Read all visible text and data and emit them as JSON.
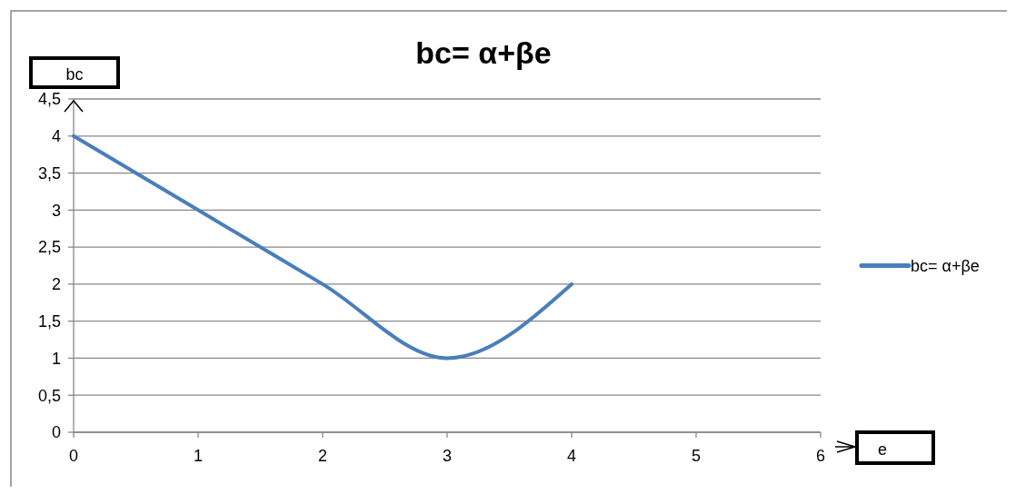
{
  "chart_data": {
    "type": "line",
    "title": "bc= α+βe",
    "xlabel": "e",
    "ylabel": "bc",
    "x": [
      0,
      1,
      2,
      3,
      4
    ],
    "series": [
      {
        "name": "bc= α+βe",
        "color": "#4a7ebb",
        "values": [
          4,
          3,
          2,
          1,
          2
        ]
      }
    ],
    "xlim": [
      0,
      6
    ],
    "xticks": [
      0,
      1,
      2,
      3,
      4,
      5,
      6
    ],
    "ylim": [
      0,
      4.5
    ],
    "yticks": [
      0,
      {
        "value": 0.5,
        "label": "0,5"
      },
      1,
      {
        "value": 1.5,
        "label": "1,5"
      },
      2,
      {
        "value": 2.5,
        "label": "2,5"
      },
      3,
      {
        "value": 3.5,
        "label": "3,5"
      },
      4,
      {
        "value": 4.5,
        "label": "4,5"
      }
    ],
    "grid": "y",
    "legend": "right",
    "marker": "none",
    "line_style": "solid"
  }
}
